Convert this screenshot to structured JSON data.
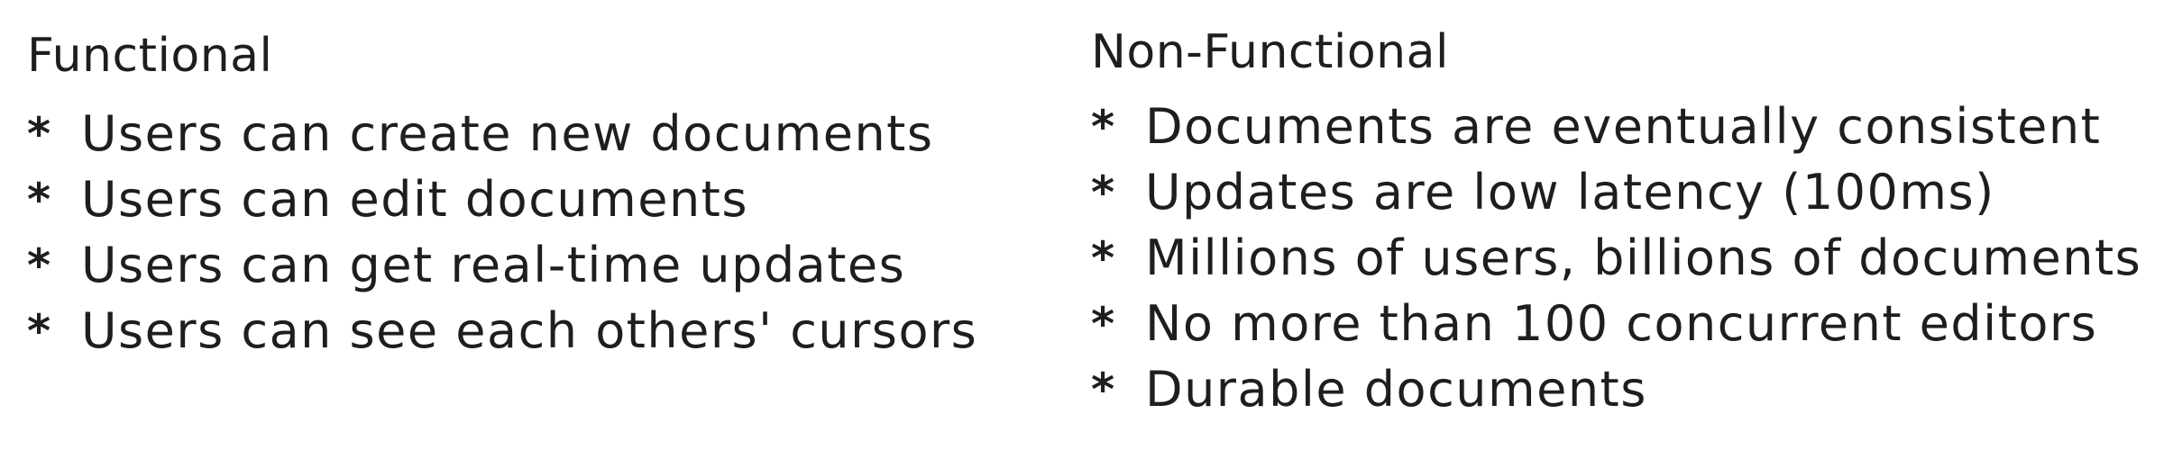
{
  "functional": {
    "heading": "Functional",
    "bullet": "*",
    "items": [
      "Users can create new documents",
      "Users can edit documents",
      "Users can get real-time updates",
      "Users can see each others' cursors"
    ]
  },
  "non_functional": {
    "heading": "Non-Functional",
    "bullet": "*",
    "items": [
      "Documents are eventually consistent",
      "Updates are low latency (100ms)",
      "Millions of users, billions of documents",
      "No more than 100 concurrent editors",
      "Durable documents"
    ]
  }
}
